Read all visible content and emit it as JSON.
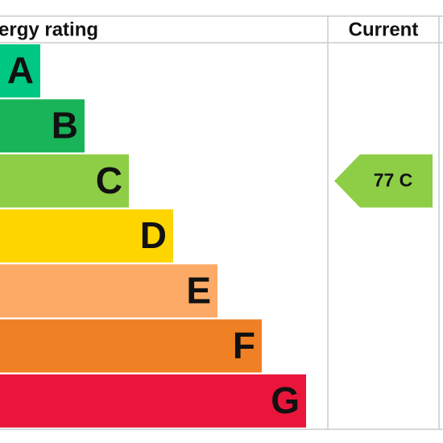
{
  "header": {
    "title": "ergy rating",
    "current": "Current"
  },
  "bands": [
    {
      "letter": "A",
      "color": "#00c781"
    },
    {
      "letter": "B",
      "color": "#19b459"
    },
    {
      "letter": "C",
      "color": "#8dce46"
    },
    {
      "letter": "D",
      "color": "#ffd500"
    },
    {
      "letter": "E",
      "color": "#fcaa65"
    },
    {
      "letter": "F",
      "color": "#ef8023"
    },
    {
      "letter": "G",
      "color": "#e9153b"
    }
  ],
  "current": {
    "label": "77 C",
    "band": 2,
    "color": "#8dce46"
  }
}
